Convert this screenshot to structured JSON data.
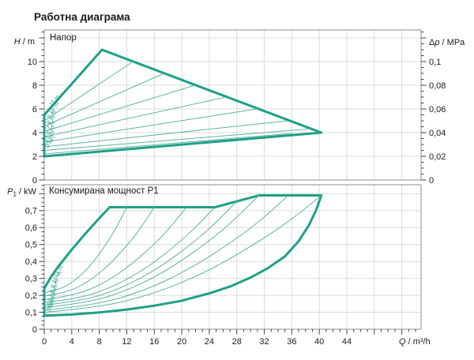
{
  "page": {
    "title": "Работна диаграма"
  },
  "colors": {
    "envelope": "#1ea087",
    "thin": "#5fb3a1",
    "curve_label": "#2a9c89",
    "grid": "#dbdbdb",
    "border": "#8f8f8f",
    "tick": "#404040",
    "text": "#1c1c1c"
  },
  "chart_data": [
    {
      "name": "head",
      "type": "area",
      "title": "Напор",
      "xlim": [
        0,
        54.8
      ],
      "ylim": [
        0,
        12.667
      ],
      "ylim_right": [
        0,
        0.12667
      ],
      "axes": {
        "left": {
          "label": {
            "it": "H",
            "post": " / m"
          },
          "tick_vals": [
            0,
            2,
            4,
            6,
            8,
            10
          ],
          "tick_labels": [
            "0",
            "2",
            "4",
            "6",
            "8",
            "10"
          ]
        },
        "right": {
          "label": {
            "pre": "Δ",
            "it": "p",
            "post": " / MPa"
          },
          "tick_vals": [
            0,
            0.02,
            0.04,
            0.06,
            0.08,
            0.1
          ],
          "tick_labels": [
            "0",
            "0,02",
            "0,04",
            "0,06",
            "0,08",
            "0,1"
          ]
        }
      },
      "series": [
        {
          "name": "operating-envelope",
          "thick": true,
          "closed": true,
          "points": [
            [
              0,
              5.5
            ],
            [
              8.4,
              11
            ],
            [
              40.3,
              4
            ],
            [
              0,
              2
            ]
          ]
        },
        {
          "name": "curve-10m",
          "points": [
            [
              0,
              5.0
            ],
            [
              12.9,
              10
            ]
          ]
        },
        {
          "name": "curve-9m",
          "points": [
            [
              0,
              4.55
            ],
            [
              17.4,
              9
            ]
          ]
        },
        {
          "name": "curve-8m",
          "points": [
            [
              0,
              4.1
            ],
            [
              21.9,
              8
            ]
          ]
        },
        {
          "name": "curve-7m",
          "points": [
            [
              0,
              3.65
            ],
            [
              26.4,
              7
            ]
          ]
        },
        {
          "name": "curve-6m",
          "points": [
            [
              0,
              3.2
            ],
            [
              30.9,
              6
            ]
          ]
        },
        {
          "name": "curve-5m",
          "points": [
            [
              0,
              2.8
            ],
            [
              35.4,
              5
            ]
          ]
        },
        {
          "name": "curve-4m",
          "points": [
            [
              0,
              2.5
            ],
            [
              38.3,
              4.3
            ]
          ]
        },
        {
          "name": "curve-3m",
          "points": [
            [
              0,
              2.2
            ],
            [
              36.0,
              3.93
            ]
          ]
        }
      ],
      "curve_labels": [
        [
          "11 m",
          1.1,
          6.2
        ],
        [
          "10 m",
          0.95,
          5.6
        ],
        [
          "9 m",
          0.85,
          5.1
        ],
        [
          "8 m",
          0.75,
          4.65
        ],
        [
          "7 m",
          0.7,
          4.2
        ],
        [
          "6 m",
          0.65,
          3.8
        ],
        [
          "5 m",
          0.6,
          3.4
        ],
        [
          "4 m",
          0.55,
          3.05
        ],
        [
          "3 m",
          0.5,
          2.7
        ]
      ]
    },
    {
      "name": "power",
      "type": "area",
      "title": "Консумирана мощност P1",
      "xlim": [
        0,
        54.8
      ],
      "ylim": [
        0,
        0.8531
      ],
      "axes": {
        "left": {
          "label": {
            "it": "P",
            "sub": "1",
            "post": " / kW"
          },
          "tick_vals": [
            0,
            0.1,
            0.2,
            0.3,
            0.4,
            0.5,
            0.6,
            0.7
          ],
          "tick_labels": [
            "0",
            "0,1",
            "0,2",
            "0,3",
            "0,4",
            "0,5",
            "0,6",
            "0,7"
          ]
        },
        "x": {
          "label": {
            "it": "Q",
            "post": " / m³/h"
          },
          "tick_vals": [
            0,
            4,
            8,
            12,
            16,
            20,
            24,
            28,
            32,
            36,
            40,
            44
          ],
          "tick_labels": [
            "0",
            "4",
            "8",
            "12",
            "16",
            "20",
            "24",
            "28",
            "32",
            "36",
            "40",
            "44"
          ]
        }
      },
      "series": [
        {
          "name": "power-envelope",
          "thick": true,
          "closed": true,
          "points": [
            [
              0,
              0.24
            ],
            [
              1,
              0.31
            ],
            [
              2,
              0.368
            ],
            [
              4,
              0.47
            ],
            [
              6,
              0.565
            ],
            [
              8,
              0.655
            ],
            [
              9.5,
              0.72
            ],
            [
              24.8,
              0.72
            ],
            [
              31.2,
              0.79
            ],
            [
              40.3,
              0.79
            ],
            [
              39.5,
              0.7
            ],
            [
              38.5,
              0.615
            ],
            [
              37,
              0.52
            ],
            [
              35,
              0.43
            ],
            [
              32.5,
              0.36
            ],
            [
              30,
              0.305
            ],
            [
              27,
              0.252
            ],
            [
              24,
              0.212
            ],
            [
              20,
              0.168
            ],
            [
              16,
              0.139
            ],
            [
              12,
              0.116
            ],
            [
              8,
              0.099
            ],
            [
              4,
              0.087
            ],
            [
              0,
              0.08
            ]
          ]
        },
        {
          "name": "power-curve-10m",
          "smooth": true,
          "points": [
            [
              0,
              0.215
            ],
            [
              2.4,
              0.235
            ],
            [
              4.8,
              0.296
            ],
            [
              7.2,
              0.397
            ],
            [
              9.6,
              0.538
            ],
            [
              10.8,
              0.624
            ],
            [
              12,
              0.72
            ]
          ]
        },
        {
          "name": "power-curve-9m",
          "smooth": true,
          "points": [
            [
              0,
              0.195
            ],
            [
              3.2,
              0.216
            ],
            [
              6.4,
              0.279
            ],
            [
              9.6,
              0.384
            ],
            [
              12.8,
              0.531
            ],
            [
              14.4,
              0.62
            ],
            [
              16,
              0.72
            ]
          ]
        },
        {
          "name": "power-curve-8m",
          "smooth": true,
          "points": [
            [
              0,
              0.175
            ],
            [
              4.1,
              0.197
            ],
            [
              8.3,
              0.262
            ],
            [
              12.4,
              0.371
            ],
            [
              16.6,
              0.524
            ],
            [
              18.6,
              0.616
            ],
            [
              20.7,
              0.72
            ]
          ]
        },
        {
          "name": "power-curve-7m",
          "smooth": true,
          "points": [
            [
              0,
              0.158
            ],
            [
              5,
              0.18
            ],
            [
              9.9,
              0.248
            ],
            [
              14.9,
              0.36
            ],
            [
              19.8,
              0.518
            ],
            [
              22.3,
              0.613
            ],
            [
              24.8,
              0.72
            ]
          ]
        },
        {
          "name": "power-curve-6m",
          "smooth": true,
          "points": [
            [
              0,
              0.143
            ],
            [
              5.6,
              0.167
            ],
            [
              11.2,
              0.241
            ],
            [
              16.8,
              0.363
            ],
            [
              22.4,
              0.535
            ],
            [
              25.2,
              0.639
            ],
            [
              28,
              0.755
            ]
          ]
        },
        {
          "name": "power-curve-5m",
          "smooth": true,
          "points": [
            [
              0,
              0.128
            ],
            [
              6.2,
              0.154
            ],
            [
              12.5,
              0.234
            ],
            [
              18.7,
              0.366
            ],
            [
              25,
              0.552
            ],
            [
              28.1,
              0.664
            ],
            [
              31.2,
              0.79
            ]
          ]
        },
        {
          "name": "power-curve-4m",
          "smooth": true,
          "points": [
            [
              0,
              0.113
            ],
            [
              7.1,
              0.14
            ],
            [
              14.2,
              0.221
            ],
            [
              21.3,
              0.357
            ],
            [
              28.4,
              0.546
            ],
            [
              32,
              0.661
            ],
            [
              35.5,
              0.79
            ]
          ]
        },
        {
          "name": "power-curve-3m",
          "smooth": true,
          "points": [
            [
              0,
              0.1
            ],
            [
              8.1,
              0.128
            ],
            [
              16.1,
              0.21
            ],
            [
              24.2,
              0.348
            ],
            [
              32.2,
              0.542
            ],
            [
              36.3,
              0.659
            ],
            [
              40.3,
              0.79
            ]
          ]
        }
      ],
      "curve_labels": [
        [
          "11 m",
          1.8,
          0.305
        ],
        [
          "10 m",
          1.55,
          0.268
        ],
        [
          "9 m",
          1.4,
          0.238
        ],
        [
          "8 m",
          1.25,
          0.208
        ],
        [
          "7 m",
          1.1,
          0.182
        ],
        [
          "6 m",
          1.0,
          0.158
        ],
        [
          "5 m",
          0.9,
          0.137
        ],
        [
          "4 m",
          0.8,
          0.117
        ],
        [
          "3 m",
          0.7,
          0.098
        ]
      ]
    }
  ]
}
